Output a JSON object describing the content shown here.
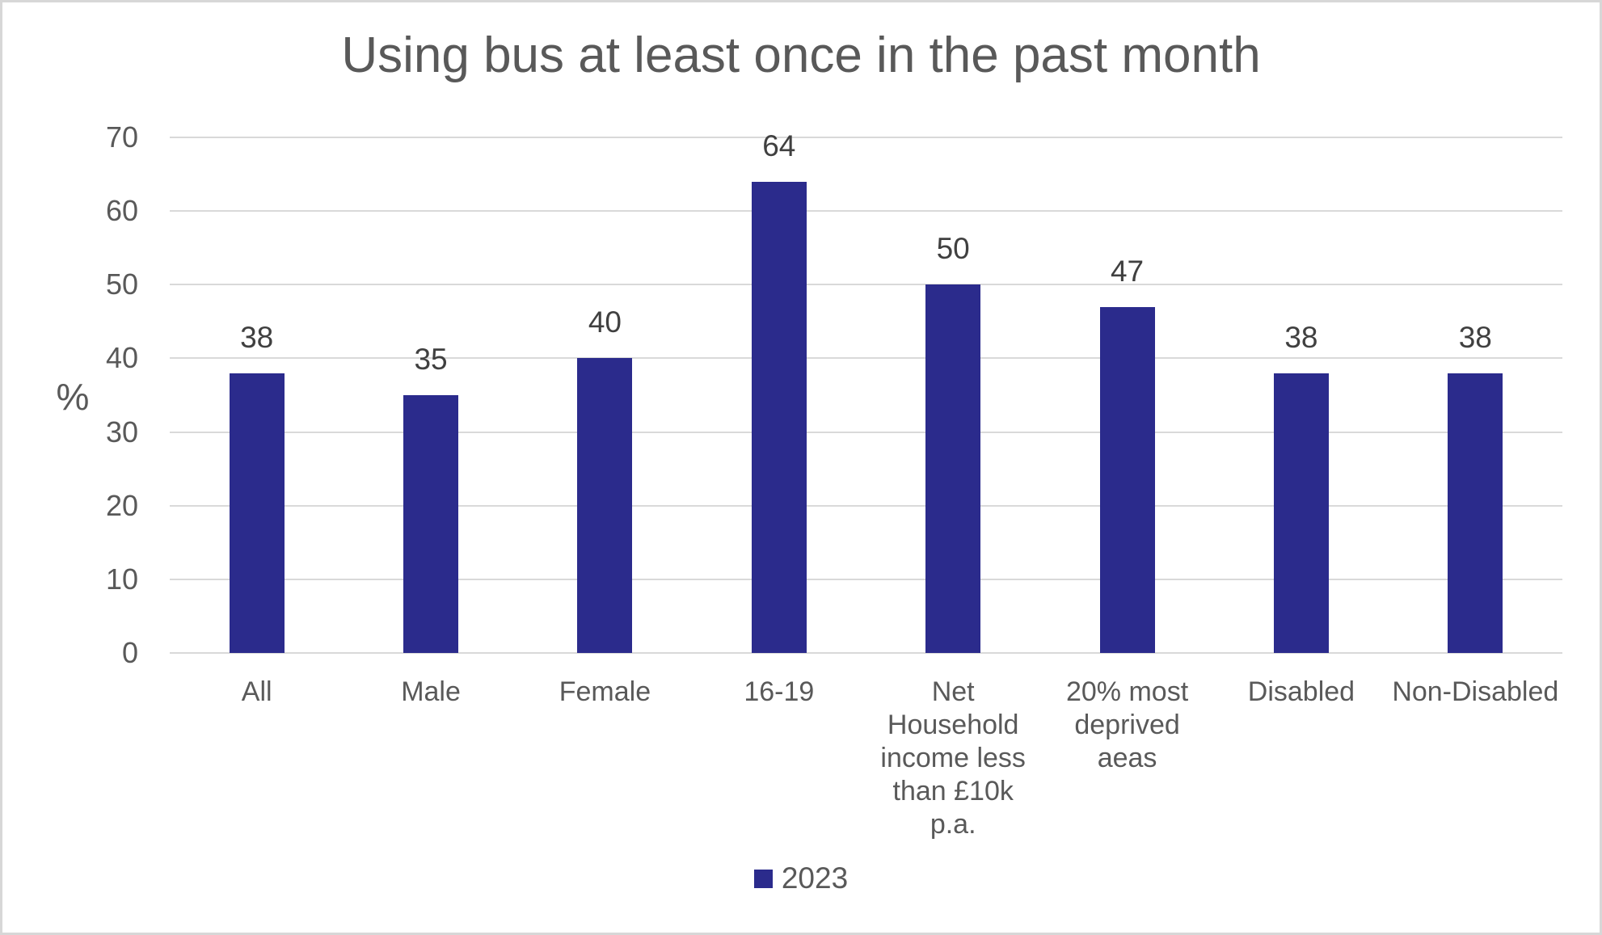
{
  "chart_data": {
    "type": "bar",
    "title": "Using bus at least once in the past month",
    "ylabel": "%",
    "xlabel": "",
    "categories": [
      "All",
      "Male",
      "Female",
      "16-19",
      "Net Household income less than £10k p.a.",
      "20% most deprived aeas",
      "Disabled",
      "Non-Disabled"
    ],
    "category_label_lines": [
      [
        "All"
      ],
      [
        "Male"
      ],
      [
        "Female"
      ],
      [
        "16-19"
      ],
      [
        "Net",
        "Household",
        "income less",
        "than £10k",
        "p.a."
      ],
      [
        "20% most",
        "deprived",
        "aeas"
      ],
      [
        "Disabled"
      ],
      [
        "Non-Disabled"
      ]
    ],
    "series": [
      {
        "name": "2023",
        "values": [
          38,
          35,
          40,
          64,
          50,
          47,
          38,
          38
        ]
      }
    ],
    "data_labels": [
      38,
      35,
      40,
      64,
      50,
      47,
      38,
      38
    ],
    "ylim": [
      0,
      70
    ],
    "yticks": [
      0,
      10,
      20,
      30,
      40,
      50,
      60,
      70
    ],
    "grid": true,
    "legend": {
      "position": "bottom",
      "entries": [
        {
          "label": "2023",
          "color": "#2B2B8C"
        }
      ]
    }
  },
  "colors": {
    "bar": "#2B2B8C",
    "title_text": "#595959",
    "axis_text": "#595959",
    "data_label_text": "#404040",
    "gridline": "#D9D9D9",
    "frame_border": "#D7D7D7",
    "background": "#FFFFFF"
  }
}
